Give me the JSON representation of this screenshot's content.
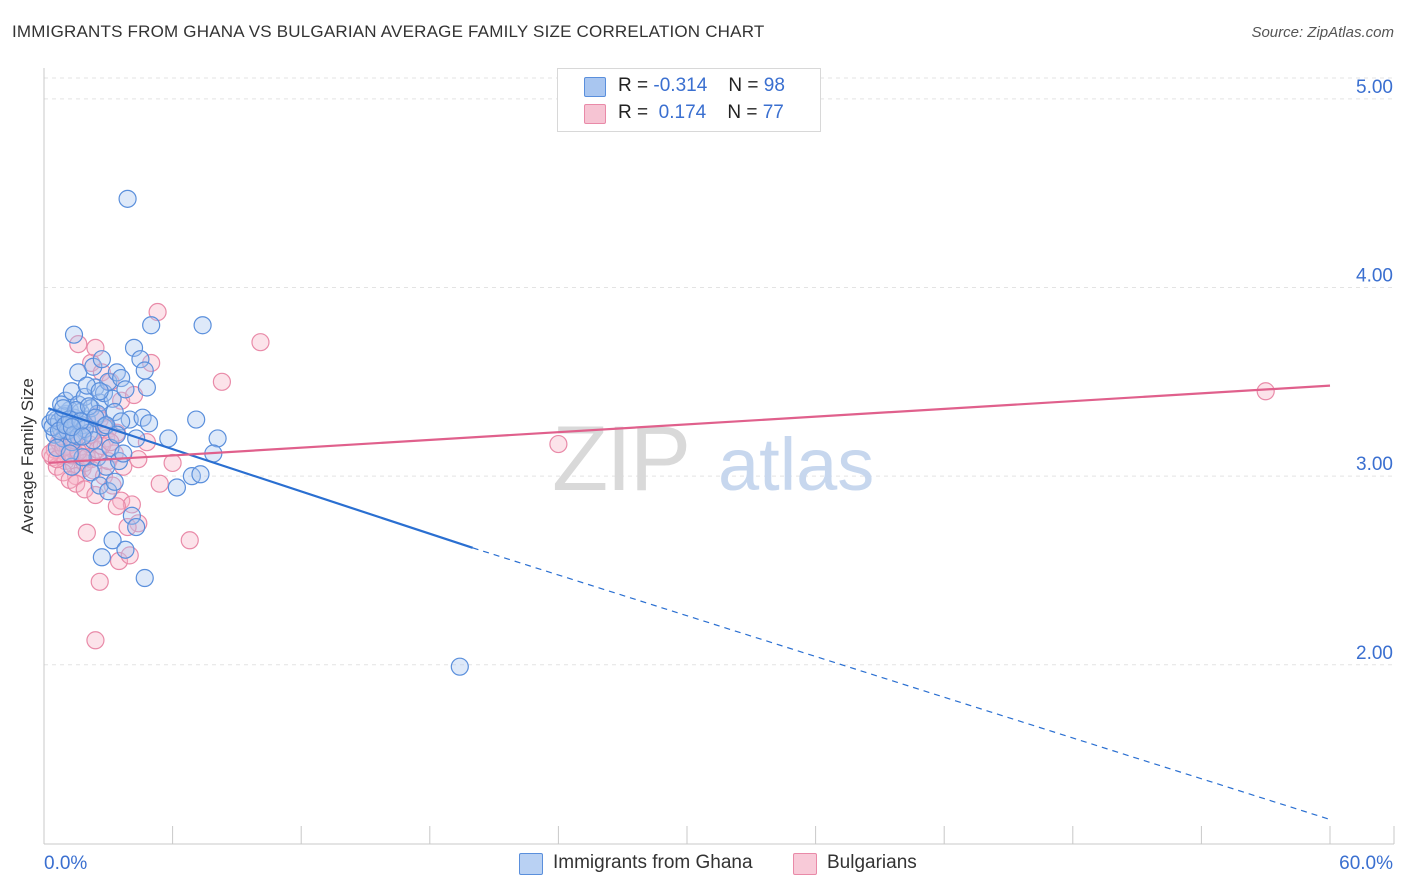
{
  "header": {
    "title": "IMMIGRANTS FROM GHANA VS BULGARIAN AVERAGE FAMILY SIZE CORRELATION CHART",
    "source": "Source: ZipAtlas.com"
  },
  "legend": {
    "rows": [
      {
        "r_label": "R =",
        "r_value": "-0.314",
        "n_label": "N =",
        "n_value": "98"
      },
      {
        "r_label": "R =",
        "r_value": " 0.174",
        "n_label": "N =",
        "n_value": "77"
      }
    ]
  },
  "watermark": {
    "zip": "ZIP",
    "atlas": "atlas"
  },
  "colors": {
    "blue_fill": "#a9c6f0",
    "blue_stroke": "#5a8fdc",
    "blue_line": "#2a6fd1",
    "pink_fill": "#f6b5c8",
    "pink_stroke": "#e98aa8",
    "pink_line": "#e0608c",
    "tick_label": "#3a6fd0",
    "grid": "#e3e3e3"
  },
  "chart_data": {
    "type": "scatter",
    "title": "IMMIGRANTS FROM GHANA VS BULGARIAN AVERAGE FAMILY SIZE CORRELATION CHART",
    "xlabel": "",
    "ylabel": "Average Family Size",
    "xlim": [
      0,
      60
    ],
    "ylim": [
      1.05,
      5.1
    ],
    "x_tick_labels": [
      "0.0%",
      "60.0%"
    ],
    "y_ticks": [
      2.0,
      3.0,
      4.0,
      5.0
    ],
    "y_tick_labels": [
      "2.00",
      "3.00",
      "4.00",
      "5.00"
    ],
    "grid": true,
    "legend_position": "bottom",
    "series": [
      {
        "name": "Immigrants from Ghana",
        "color": "blue",
        "R": -0.314,
        "N": 98,
        "trend": {
          "x0": 0.2,
          "y0": 3.36,
          "x1": 20.0,
          "y1": 2.62,
          "dash_to_x": 60.0,
          "dash_to_y": 1.18
        },
        "points": [
          [
            0.3,
            3.28
          ],
          [
            0.5,
            3.22
          ],
          [
            0.6,
            3.3
          ],
          [
            0.8,
            3.25
          ],
          [
            0.9,
            3.2
          ],
          [
            1.0,
            3.33
          ],
          [
            1.1,
            3.27
          ],
          [
            1.2,
            3.35
          ],
          [
            1.3,
            3.18
          ],
          [
            1.4,
            3.31
          ],
          [
            0.4,
            3.26
          ],
          [
            0.7,
            3.29
          ],
          [
            0.9,
            3.32
          ],
          [
            1.1,
            3.24
          ],
          [
            1.5,
            3.28
          ],
          [
            1.6,
            3.21
          ],
          [
            1.7,
            3.34
          ],
          [
            1.8,
            3.27
          ],
          [
            2.0,
            3.3
          ],
          [
            2.1,
            3.23
          ],
          [
            1.0,
            3.4
          ],
          [
            1.3,
            3.45
          ],
          [
            1.6,
            3.38
          ],
          [
            1.9,
            3.42
          ],
          [
            2.2,
            3.36
          ],
          [
            2.4,
            3.47
          ],
          [
            2.6,
            3.39
          ],
          [
            2.8,
            3.44
          ],
          [
            3.0,
            3.5
          ],
          [
            3.2,
            3.41
          ],
          [
            1.4,
            3.75
          ],
          [
            1.6,
            3.55
          ],
          [
            2.0,
            3.48
          ],
          [
            2.3,
            3.58
          ],
          [
            2.7,
            3.62
          ],
          [
            3.4,
            3.55
          ],
          [
            3.6,
            3.52
          ],
          [
            3.8,
            3.46
          ],
          [
            4.2,
            3.68
          ],
          [
            4.5,
            3.62
          ],
          [
            4.7,
            3.56
          ],
          [
            5.0,
            3.8
          ],
          [
            7.4,
            3.8
          ],
          [
            4.8,
            3.47
          ],
          [
            3.9,
            4.47
          ],
          [
            2.5,
            3.1
          ],
          [
            2.9,
            3.05
          ],
          [
            3.1,
            3.15
          ],
          [
            3.5,
            3.08
          ],
          [
            3.7,
            3.12
          ],
          [
            4.0,
            3.3
          ],
          [
            4.3,
            3.2
          ],
          [
            4.6,
            3.31
          ],
          [
            4.9,
            3.28
          ],
          [
            5.8,
            3.2
          ],
          [
            7.1,
            3.3
          ],
          [
            8.1,
            3.2
          ],
          [
            7.9,
            3.12
          ],
          [
            1.3,
            3.05
          ],
          [
            1.8,
            3.1
          ],
          [
            2.2,
            3.02
          ],
          [
            2.6,
            2.95
          ],
          [
            3.0,
            2.92
          ],
          [
            3.3,
            2.97
          ],
          [
            6.2,
            2.94
          ],
          [
            6.9,
            3.0
          ],
          [
            7.3,
            3.01
          ],
          [
            3.2,
            2.66
          ],
          [
            4.1,
            2.79
          ],
          [
            4.3,
            2.73
          ],
          [
            2.7,
            2.57
          ],
          [
            3.8,
            2.61
          ],
          [
            4.7,
            2.46
          ],
          [
            19.4,
            1.99
          ],
          [
            0.6,
            3.15
          ],
          [
            0.8,
            3.38
          ],
          [
            1.2,
            3.12
          ],
          [
            1.5,
            3.35
          ],
          [
            1.9,
            3.25
          ],
          [
            2.3,
            3.19
          ],
          [
            2.5,
            3.33
          ],
          [
            2.8,
            3.26
          ],
          [
            3.3,
            3.34
          ],
          [
            3.6,
            3.29
          ],
          [
            0.5,
            3.31
          ],
          [
            0.7,
            3.24
          ],
          [
            1.0,
            3.27
          ],
          [
            1.2,
            3.3
          ],
          [
            1.4,
            3.22
          ],
          [
            1.7,
            3.29
          ],
          [
            2.1,
            3.37
          ],
          [
            2.4,
            3.31
          ],
          [
            2.9,
            3.27
          ],
          [
            3.4,
            3.22
          ],
          [
            0.9,
            3.36
          ],
          [
            1.3,
            3.26
          ],
          [
            1.8,
            3.21
          ],
          [
            2.6,
            3.45
          ]
        ]
      },
      {
        "name": "Bulgarians",
        "color": "pink",
        "R": 0.174,
        "N": 77,
        "trend": {
          "x0": 0.2,
          "y0": 3.07,
          "x1": 60.0,
          "y1": 3.48
        },
        "points": [
          [
            0.4,
            3.1
          ],
          [
            0.6,
            3.05
          ],
          [
            0.8,
            3.12
          ],
          [
            1.0,
            3.08
          ],
          [
            1.2,
            3.15
          ],
          [
            1.4,
            3.06
          ],
          [
            1.6,
            3.11
          ],
          [
            1.8,
            3.04
          ],
          [
            2.0,
            3.13
          ],
          [
            2.2,
            3.09
          ],
          [
            0.5,
            3.14
          ],
          [
            0.7,
            3.18
          ],
          [
            0.9,
            3.02
          ],
          [
            1.1,
            3.16
          ],
          [
            1.3,
            3.2
          ],
          [
            1.5,
            3.0
          ],
          [
            1.7,
            3.22
          ],
          [
            1.9,
            3.07
          ],
          [
            2.1,
            3.17
          ],
          [
            2.3,
            3.03
          ],
          [
            1.2,
            2.98
          ],
          [
            1.5,
            2.96
          ],
          [
            1.9,
            2.93
          ],
          [
            2.4,
            2.9
          ],
          [
            2.8,
            3.0
          ],
          [
            3.2,
            2.95
          ],
          [
            3.6,
            2.87
          ],
          [
            4.1,
            2.85
          ],
          [
            4.4,
            2.75
          ],
          [
            5.4,
            2.96
          ],
          [
            3.4,
            2.84
          ],
          [
            3.9,
            2.73
          ],
          [
            2.0,
            2.7
          ],
          [
            3.5,
            2.55
          ],
          [
            2.6,
            2.44
          ],
          [
            2.4,
            2.13
          ],
          [
            6.8,
            2.66
          ],
          [
            4.0,
            2.58
          ],
          [
            3.0,
            3.25
          ],
          [
            2.5,
            3.32
          ],
          [
            2.2,
            3.6
          ],
          [
            2.7,
            3.55
          ],
          [
            3.1,
            3.5
          ],
          [
            1.6,
            3.7
          ],
          [
            2.4,
            3.68
          ],
          [
            5.3,
            3.87
          ],
          [
            8.3,
            3.5
          ],
          [
            10.1,
            3.71
          ],
          [
            5.0,
            3.6
          ],
          [
            4.8,
            3.18
          ],
          [
            6.0,
            3.07
          ],
          [
            3.6,
            3.4
          ],
          [
            4.2,
            3.43
          ],
          [
            24.0,
            3.17
          ],
          [
            57.0,
            3.45
          ],
          [
            0.3,
            3.12
          ],
          [
            0.6,
            3.09
          ],
          [
            0.9,
            3.15
          ],
          [
            1.3,
            3.11
          ],
          [
            1.6,
            3.13
          ],
          [
            2.0,
            3.1
          ],
          [
            2.5,
            3.14
          ],
          [
            3.0,
            3.08
          ],
          [
            3.3,
            3.12
          ],
          [
            2.9,
            3.2
          ],
          [
            3.7,
            3.05
          ],
          [
            4.4,
            3.09
          ],
          [
            1.1,
            3.25
          ],
          [
            1.8,
            3.27
          ],
          [
            2.6,
            3.3
          ],
          [
            3.4,
            3.23
          ],
          [
            0.8,
            3.21
          ],
          [
            1.4,
            3.19
          ],
          [
            2.2,
            3.22
          ],
          [
            2.7,
            3.16
          ],
          [
            3.1,
            3.18
          ],
          [
            1.0,
            3.24
          ]
        ]
      }
    ]
  },
  "bottom_legend": {
    "items": [
      {
        "label": "Immigrants from Ghana"
      },
      {
        "label": "Bulgarians"
      }
    ]
  }
}
